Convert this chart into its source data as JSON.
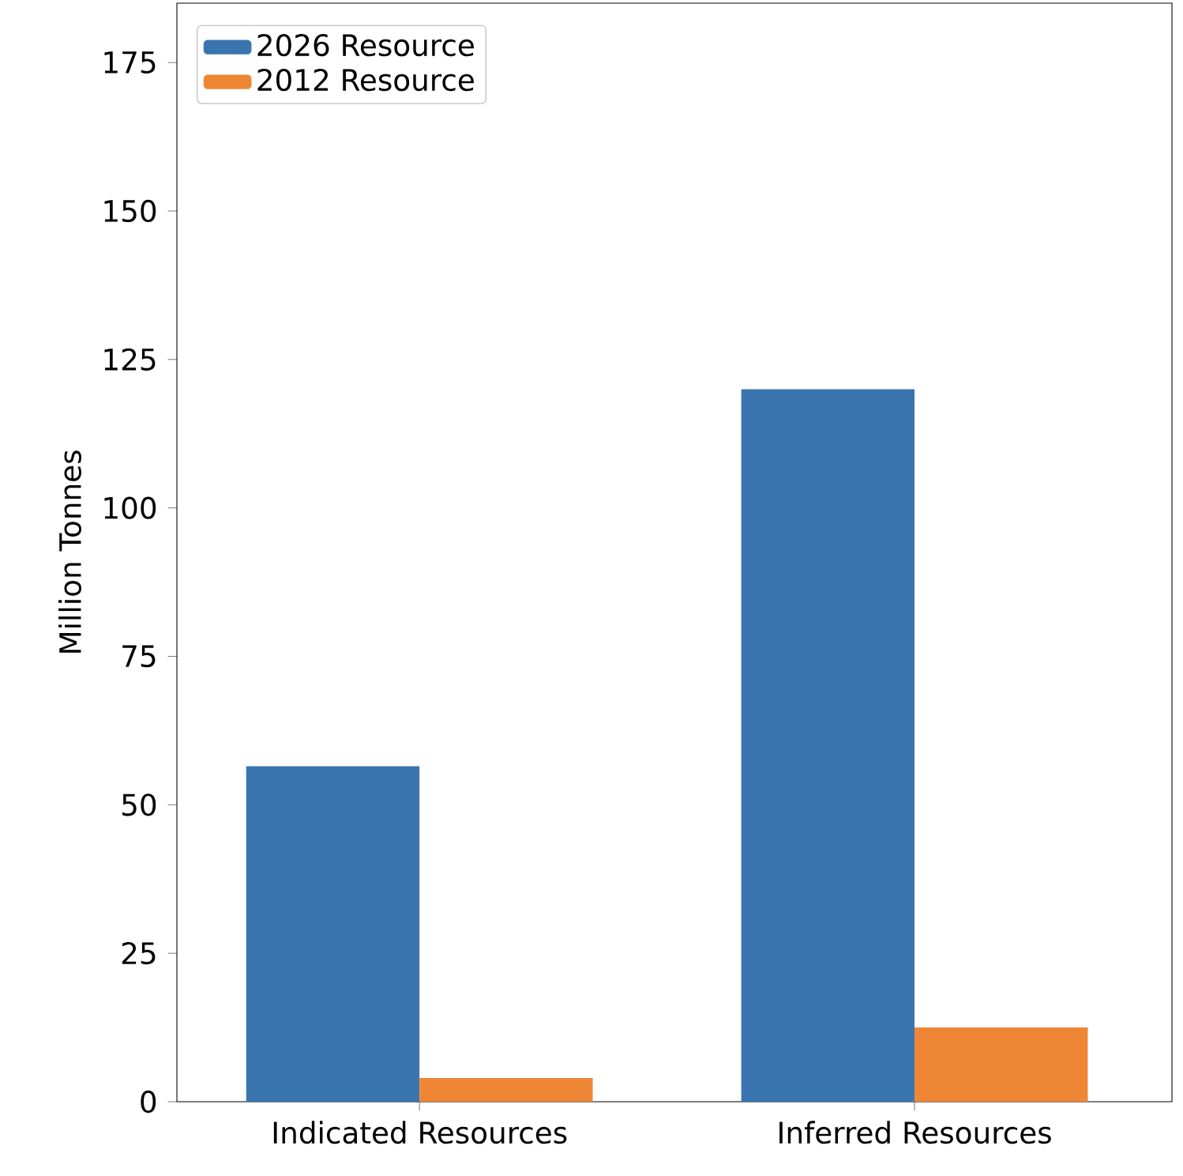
{
  "chart_data": {
    "type": "bar",
    "ylabel": "Million Tonnes",
    "categories": [
      "Indicated Resources",
      "Inferred Resources"
    ],
    "series": [
      {
        "name": "2026 Resource",
        "color": "#3a75b0",
        "values": [
          56.5,
          120
        ]
      },
      {
        "name": "2012 Resource",
        "color": "#ef8636",
        "values": [
          4,
          12.5
        ]
      }
    ],
    "ylim": [
      0,
      185
    ],
    "yticks": [
      0,
      25,
      50,
      75,
      100,
      125,
      150,
      175
    ],
    "grid": false,
    "legend": "top left"
  }
}
